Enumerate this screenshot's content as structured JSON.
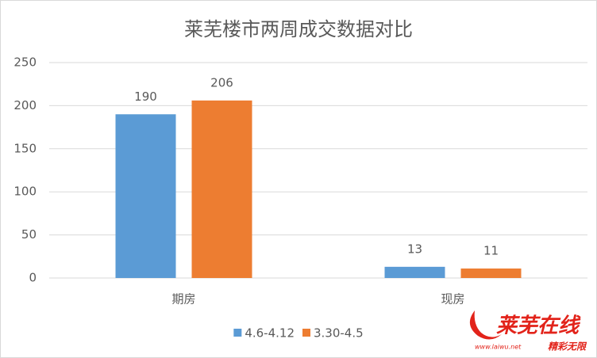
{
  "chart_data": {
    "type": "bar",
    "title": "莱芜楼市两周成交数据对比",
    "categories": [
      "期房",
      "现房"
    ],
    "series": [
      {
        "name": "4.6-4.12",
        "color": "#5b9bd5",
        "values": [
          190,
          13
        ]
      },
      {
        "name": "3.30-4.5",
        "color": "#ed7d31",
        "values": [
          206,
          11
        ]
      }
    ],
    "ylim": [
      0,
      250
    ],
    "yticks": [
      0,
      50,
      100,
      150,
      200,
      250
    ],
    "grid": true,
    "legend": "bottom"
  },
  "watermark": {
    "text": "莱芜在线",
    "slogan": "精彩无限",
    "url": "www.laiwu.net"
  }
}
